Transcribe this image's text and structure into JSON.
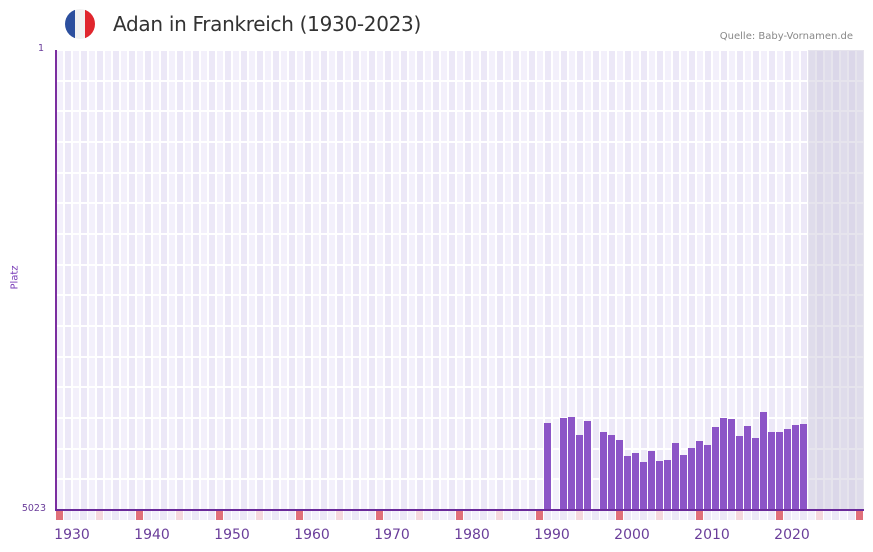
{
  "header": {
    "title": "Adan in Frankreich (1930-2023)",
    "source": "Quelle: Baby-Vornamen.de",
    "flag_icon": "france-flag-icon",
    "flag_colors": [
      "#2c4f9e",
      "#f2f2f2",
      "#e0262d"
    ]
  },
  "axes": {
    "y_top_label": "1",
    "y_bottom_label": "5023",
    "y_title": "Platz",
    "x_ticks": [
      "1930",
      "1940",
      "1950",
      "1960",
      "1970",
      "1980",
      "1990",
      "2000",
      "2010",
      "2020"
    ]
  },
  "colors": {
    "bar": "#8c55c7",
    "axis": "#6a2a9a",
    "marker_decade": "#e0707a",
    "marker_half": "#f5d8de",
    "grid_a": "#f3f0fb",
    "grid_b": "#ece8f7"
  },
  "chart_data": {
    "type": "bar",
    "title": "Adan in Frankreich (1930-2023)",
    "xlabel": "",
    "ylabel": "Platz",
    "ylim": [
      5023,
      1
    ],
    "y_inverted": true,
    "x_range": [
      1930,
      2023
    ],
    "grid": true,
    "source": "Quelle: Baby-Vornamen.de",
    "categories": [
      1991,
      1992,
      1993,
      1994,
      1995,
      1996,
      1997,
      1998,
      1999,
      2000,
      2001,
      2002,
      2003,
      2004,
      2005,
      2006,
      2007,
      2008,
      2009,
      2010,
      2011,
      2012,
      2013,
      2014,
      2015,
      2016,
      2017,
      2018,
      2019,
      2020,
      2021,
      2022,
      2023
    ],
    "values": [
      4073,
      null,
      4018,
      4007,
      4204,
      4051,
      null,
      4171,
      4204,
      4259,
      4433,
      4401,
      4499,
      4379,
      4488,
      4477,
      4292,
      4423,
      4346,
      4270,
      4313,
      4117,
      4018,
      4029,
      4215,
      4106,
      4237,
      3953,
      4171,
      4171,
      4139,
      4095,
      4084
    ]
  }
}
